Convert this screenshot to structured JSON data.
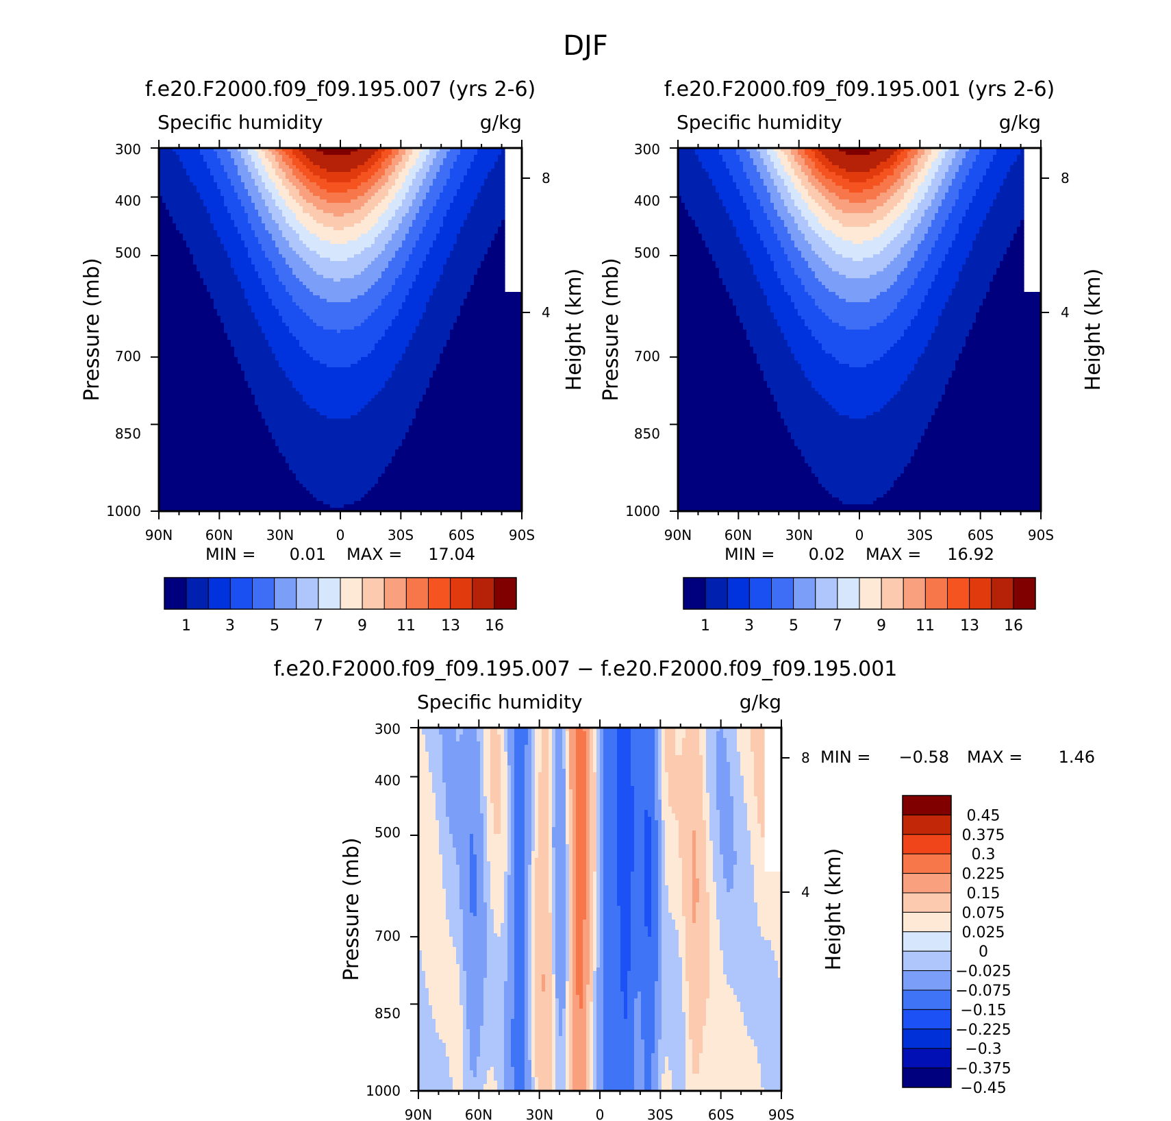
{
  "figure": {
    "title": "DJF"
  },
  "colors": {
    "main_scale": [
      "#00007f",
      "#0020b0",
      "#0033dd",
      "#1a4ff2",
      "#3e6ef5",
      "#7b9ef9",
      "#aec6fc",
      "#d6e6fc",
      "#fde9d6",
      "#fccaae",
      "#f9a07f",
      "#f7774a",
      "#f5531f",
      "#e03a0d",
      "#b52208",
      "#800000"
    ],
    "diff_scale": [
      "#00007f",
      "#0010b4",
      "#0030d8",
      "#1c52f5",
      "#3f74f6",
      "#7b9ef9",
      "#aec6fc",
      "#d6e6fc",
      "#fde9d6",
      "#fccaae",
      "#f9a07f",
      "#f7774a",
      "#f0451a",
      "#c22708",
      "#800000"
    ]
  },
  "chart_data": [
    {
      "type": "heatmap",
      "title": "f.e20.F2000.f09_f09.195.007 (yrs 2-6)",
      "left_string": "Specific humidity",
      "right_string": "g/kg",
      "ylabel": "Pressure (mb)",
      "ylabel_right": "Height (km)",
      "x_ticks": [
        "90N",
        "60N",
        "30N",
        "0",
        "30S",
        "60S",
        "90S"
      ],
      "y_ticks": [
        "300",
        "400",
        "500",
        "700",
        "850",
        "1000"
      ],
      "y_right_ticks": [
        "8",
        "4"
      ],
      "ylim": [
        1000,
        300
      ],
      "xlim": [
        90,
        -90
      ],
      "min_label": "MIN =",
      "min_value": "0.01",
      "max_label": "MAX =",
      "max_value": "17.04",
      "colorbar_labels": [
        "1",
        "3",
        "5",
        "7",
        "9",
        "11",
        "13",
        "16"
      ],
      "colorbar_levels": [
        1,
        2,
        3,
        4,
        5,
        6,
        7,
        8,
        9,
        10,
        11,
        12,
        13,
        14,
        16
      ],
      "max": 17.04
    },
    {
      "type": "heatmap",
      "title": "f.e20.F2000.f09_f09.195.001 (yrs 2-6)",
      "left_string": "Specific humidity",
      "right_string": "g/kg",
      "ylabel": "Pressure (mb)",
      "ylabel_right": "Height (km)",
      "x_ticks": [
        "90N",
        "60N",
        "30N",
        "0",
        "30S",
        "60S",
        "90S"
      ],
      "y_ticks": [
        "300",
        "400",
        "500",
        "700",
        "850",
        "1000"
      ],
      "y_right_ticks": [
        "8",
        "4"
      ],
      "ylim": [
        1000,
        300
      ],
      "xlim": [
        90,
        -90
      ],
      "min_label": "MIN =",
      "min_value": "0.02",
      "max_label": "MAX =",
      "max_value": "16.92",
      "colorbar_labels": [
        "1",
        "3",
        "5",
        "7",
        "9",
        "11",
        "13",
        "16"
      ],
      "colorbar_levels": [
        1,
        2,
        3,
        4,
        5,
        6,
        7,
        8,
        9,
        10,
        11,
        12,
        13,
        14,
        16
      ],
      "max": 16.92
    },
    {
      "type": "heatmap",
      "title": "f.e20.F2000.f09_f09.195.007 − f.e20.F2000.f09_f09.195.001",
      "left_string": "Specific humidity",
      "right_string": "g/kg",
      "ylabel": "Pressure (mb)",
      "ylabel_right": "Height (km)",
      "x_ticks": [
        "90N",
        "60N",
        "30N",
        "0",
        "30S",
        "60S",
        "90S"
      ],
      "y_ticks": [
        "300",
        "400",
        "500",
        "700",
        "850",
        "1000"
      ],
      "y_right_ticks": [
        "8",
        "4"
      ],
      "ylim": [
        1000,
        300
      ],
      "xlim": [
        90,
        -90
      ],
      "min_label": "MIN =",
      "min_value": "−0.58",
      "max_label": "MAX =",
      "max_value": "1.46",
      "colorbar_labels": [
        "0.45",
        "0.375",
        "0.3",
        "0.225",
        "0.15",
        "0.075",
        "0.025",
        "0",
        "−0.025",
        "−0.075",
        "−0.15",
        "−0.225",
        "−0.3",
        "−0.375",
        "−0.45"
      ],
      "colorbar_levels": [
        -0.45,
        -0.375,
        -0.3,
        -0.225,
        -0.15,
        -0.075,
        -0.025,
        0,
        0.025,
        0.075,
        0.15,
        0.225,
        0.3,
        0.375,
        0.45
      ],
      "diff_bands": [
        {
          "lat": 75,
          "value": -0.012
        },
        {
          "lat": 63,
          "value": -0.05
        },
        {
          "lat": 52,
          "value": 0.012
        },
        {
          "lat": 40,
          "value": -0.1
        },
        {
          "lat": 27,
          "value": 0.06
        },
        {
          "lat": 20,
          "value": -0.05
        },
        {
          "lat": 10,
          "value": 0.17
        },
        {
          "lat": -5,
          "value": -0.1
        },
        {
          "lat": -13,
          "value": -0.16
        },
        {
          "lat": -24,
          "value": -0.12
        },
        {
          "lat": -33,
          "value": 0.012
        },
        {
          "lat": -47,
          "value": 0.05
        },
        {
          "lat": -62,
          "value": -0.012
        },
        {
          "lat": -79,
          "value": 0.012
        }
      ]
    }
  ]
}
